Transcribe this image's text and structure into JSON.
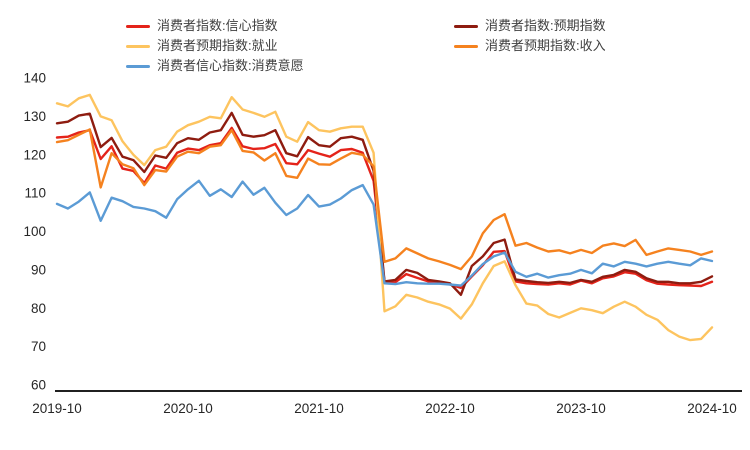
{
  "chart_data": {
    "type": "line",
    "title": "",
    "xlabel": "",
    "ylabel": "",
    "ylim": [
      60,
      140
    ],
    "y_ticks": [
      140,
      130,
      120,
      110,
      100,
      90,
      80,
      70,
      60
    ],
    "x_tick_labels": [
      "2019-10",
      "2020-10",
      "2021-10",
      "2022-10",
      "2023-10",
      "2024-10"
    ],
    "grid": false,
    "legend_position": "top, two columns",
    "axis_color": "#000000",
    "tick_text_color": "#262626",
    "x": [
      "2019-10",
      "2019-11",
      "2019-12",
      "2020-01",
      "2020-02",
      "2020-03",
      "2020-04",
      "2020-05",
      "2020-06",
      "2020-07",
      "2020-08",
      "2020-09",
      "2020-10",
      "2020-11",
      "2020-12",
      "2021-01",
      "2021-02",
      "2021-03",
      "2021-04",
      "2021-05",
      "2021-06",
      "2021-07",
      "2021-08",
      "2021-09",
      "2021-10",
      "2021-11",
      "2021-12",
      "2022-01",
      "2022-02",
      "2022-03",
      "2022-04",
      "2022-05",
      "2022-06",
      "2022-07",
      "2022-08",
      "2022-09",
      "2022-10",
      "2022-11",
      "2022-12",
      "2023-01",
      "2023-02",
      "2023-03",
      "2023-04",
      "2023-05",
      "2023-06",
      "2023-07",
      "2023-08",
      "2023-09",
      "2023-10",
      "2023-11",
      "2023-12",
      "2024-01",
      "2024-02",
      "2024-03",
      "2024-04",
      "2024-05",
      "2024-06",
      "2024-07",
      "2024-08",
      "2024-09",
      "2024-10"
    ],
    "series": [
      {
        "name": "消费者指数:信心指数",
        "color": "#e4231a",
        "values": [
          124.5,
          124.7,
          125.8,
          126.4,
          118.9,
          122.2,
          116.4,
          115.8,
          112.6,
          117.2,
          116.4,
          120.5,
          121.6,
          121.2,
          122.5,
          123.0,
          127.0,
          122.2,
          121.5,
          121.7,
          122.8,
          117.8,
          117.5,
          121.2,
          120.3,
          119.5,
          121.2,
          121.5,
          120.5,
          113.2,
          86.7,
          86.8,
          88.9,
          87.9,
          87.0,
          86.9,
          86.2,
          85.3,
          88.3,
          91.2,
          94.7,
          94.9,
          87.0,
          86.5,
          86.3,
          86.2,
          86.5,
          86.2,
          87.2,
          86.5,
          87.8,
          88.3,
          89.4,
          89.0,
          87.3,
          86.4,
          86.2,
          86.0,
          85.9,
          85.8,
          86.9
        ]
      },
      {
        "name": "消费者指数:预期指数",
        "color": "#8e1c10",
        "values": [
          128.2,
          128.6,
          130.2,
          130.7,
          122.0,
          124.4,
          119.5,
          118.6,
          115.5,
          119.8,
          119.2,
          123.0,
          124.3,
          123.9,
          125.8,
          126.4,
          130.9,
          125.2,
          124.7,
          125.1,
          126.4,
          120.4,
          119.6,
          124.6,
          122.5,
          122.1,
          124.3,
          124.7,
          123.9,
          115.8,
          87.0,
          87.4,
          90.0,
          89.2,
          87.4,
          87.0,
          86.5,
          83.5,
          91.0,
          93.5,
          97.0,
          97.9,
          87.5,
          87.1,
          86.8,
          86.6,
          86.9,
          86.6,
          87.4,
          86.9,
          88.2,
          88.7,
          90.0,
          89.5,
          87.8,
          86.9,
          86.9,
          86.5,
          86.5,
          86.9,
          88.3
        ]
      },
      {
        "name": "消费者预期指数:就业",
        "color": "#fdc45f",
        "values": [
          133.4,
          132.6,
          134.7,
          135.6,
          130.0,
          129.0,
          123.5,
          120.0,
          117.3,
          121.2,
          122.1,
          126.0,
          127.7,
          128.6,
          129.9,
          129.5,
          135.0,
          131.8,
          130.9,
          129.9,
          131.2,
          124.7,
          123.4,
          128.5,
          126.4,
          126.0,
          126.9,
          127.3,
          127.3,
          120.5,
          79.2,
          80.5,
          83.5,
          82.8,
          81.7,
          81.0,
          79.9,
          77.3,
          81.0,
          86.5,
          91.0,
          92.2,
          86.0,
          81.2,
          80.7,
          78.5,
          77.6,
          78.8,
          80.0,
          79.5,
          78.7,
          80.4,
          81.7,
          80.4,
          78.3,
          77.0,
          74.3,
          72.6,
          71.7,
          72.0,
          75.0
        ]
      },
      {
        "name": "消费者预期指数:收入",
        "color": "#f5821f",
        "values": [
          123.3,
          123.8,
          125.2,
          126.6,
          111.5,
          120.4,
          117.5,
          116.5,
          112.1,
          116.0,
          115.6,
          119.5,
          120.8,
          120.4,
          122.1,
          122.5,
          126.4,
          121.0,
          120.6,
          118.5,
          120.4,
          114.5,
          114.0,
          119.0,
          117.5,
          117.4,
          119.0,
          120.5,
          120.0,
          117.0,
          92.1,
          93.0,
          95.6,
          94.3,
          93.0,
          92.2,
          91.3,
          90.2,
          93.5,
          99.5,
          103.0,
          104.5,
          96.3,
          97.0,
          95.8,
          94.8,
          95.1,
          94.3,
          95.2,
          94.4,
          96.3,
          96.9,
          96.2,
          97.8,
          93.9,
          94.8,
          95.6,
          95.2,
          94.8,
          93.9,
          94.8
        ]
      },
      {
        "name": "消费者信心指数:消费意愿",
        "color": "#5b9bd5",
        "values": [
          107.2,
          106.0,
          107.8,
          110.2,
          102.8,
          108.8,
          107.9,
          106.4,
          106.0,
          105.3,
          103.6,
          108.4,
          111.0,
          113.2,
          109.3,
          111.0,
          109.0,
          113.0,
          109.6,
          111.4,
          107.5,
          104.3,
          106.0,
          109.5,
          106.5,
          107.0,
          108.6,
          110.8,
          112.1,
          107.0,
          86.5,
          86.3,
          86.8,
          86.5,
          86.4,
          86.4,
          86.2,
          85.9,
          88.5,
          91.5,
          93.5,
          94.5,
          89.5,
          88.2,
          89.0,
          88.0,
          88.6,
          89.0,
          90.0,
          89.1,
          91.6,
          90.9,
          92.1,
          91.6,
          90.9,
          91.6,
          92.1,
          91.6,
          91.2,
          93.0,
          92.3
        ]
      }
    ]
  }
}
